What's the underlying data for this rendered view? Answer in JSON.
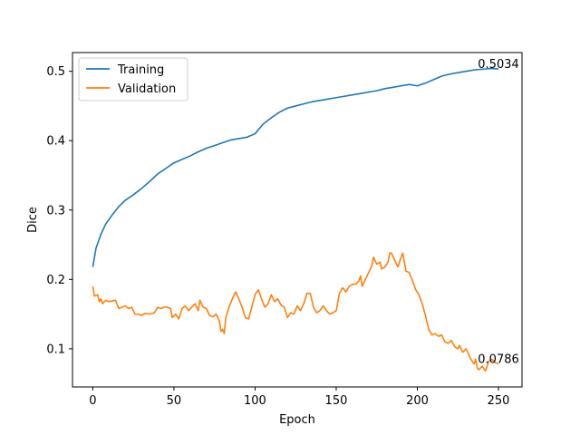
{
  "chart_data": {
    "type": "line",
    "title": "",
    "xlabel": "Epoch",
    "ylabel": "Dice",
    "xlim": [
      -12.5,
      264.5
    ],
    "ylim": [
      0.045,
      0.527
    ],
    "xticks": [
      0,
      50,
      100,
      150,
      200,
      250
    ],
    "yticks": [
      0.1,
      0.2,
      0.3,
      0.4,
      0.5
    ],
    "xtick_labels": [
      "0",
      "50",
      "100",
      "150",
      "200",
      "250"
    ],
    "ytick_labels": [
      "0.1",
      "0.2",
      "0.3",
      "0.4",
      "0.5"
    ],
    "grid": false,
    "legend": {
      "position": "upper-left",
      "entries": [
        "Training",
        "Validation"
      ]
    },
    "series": [
      {
        "name": "Training",
        "color": "#1f77b4",
        "points": [
          [
            0,
            0.218
          ],
          [
            2,
            0.245
          ],
          [
            5,
            0.265
          ],
          [
            8,
            0.28
          ],
          [
            12,
            0.293
          ],
          [
            16,
            0.305
          ],
          [
            20,
            0.314
          ],
          [
            25,
            0.322
          ],
          [
            30,
            0.331
          ],
          [
            35,
            0.341
          ],
          [
            40,
            0.352
          ],
          [
            45,
            0.36
          ],
          [
            50,
            0.368
          ],
          [
            55,
            0.373
          ],
          [
            60,
            0.378
          ],
          [
            65,
            0.384
          ],
          [
            70,
            0.389
          ],
          [
            75,
            0.393
          ],
          [
            80,
            0.397
          ],
          [
            85,
            0.401
          ],
          [
            90,
            0.403
          ],
          [
            95,
            0.405
          ],
          [
            100,
            0.41
          ],
          [
            105,
            0.424
          ],
          [
            110,
            0.433
          ],
          [
            115,
            0.441
          ],
          [
            120,
            0.447
          ],
          [
            125,
            0.45
          ],
          [
            130,
            0.453
          ],
          [
            135,
            0.456
          ],
          [
            140,
            0.458
          ],
          [
            145,
            0.46
          ],
          [
            150,
            0.462
          ],
          [
            155,
            0.464
          ],
          [
            160,
            0.466
          ],
          [
            165,
            0.468
          ],
          [
            170,
            0.47
          ],
          [
            175,
            0.472
          ],
          [
            180,
            0.475
          ],
          [
            185,
            0.477
          ],
          [
            190,
            0.479
          ],
          [
            195,
            0.481
          ],
          [
            200,
            0.479
          ],
          [
            205,
            0.483
          ],
          [
            210,
            0.488
          ],
          [
            215,
            0.493
          ],
          [
            220,
            0.496
          ],
          [
            225,
            0.498
          ],
          [
            230,
            0.5
          ],
          [
            235,
            0.502
          ],
          [
            240,
            0.503
          ],
          [
            245,
            0.504
          ],
          [
            250,
            0.5034
          ]
        ]
      },
      {
        "name": "Validation",
        "color": "#ff7f0e",
        "points": [
          [
            0,
            0.19
          ],
          [
            1,
            0.176
          ],
          [
            3,
            0.178
          ],
          [
            4,
            0.168
          ],
          [
            5,
            0.172
          ],
          [
            6,
            0.165
          ],
          [
            8,
            0.17
          ],
          [
            10,
            0.168
          ],
          [
            12,
            0.169
          ],
          [
            14,
            0.17
          ],
          [
            16,
            0.158
          ],
          [
            18,
            0.16
          ],
          [
            20,
            0.162
          ],
          [
            22,
            0.158
          ],
          [
            24,
            0.16
          ],
          [
            26,
            0.15
          ],
          [
            28,
            0.15
          ],
          [
            30,
            0.148
          ],
          [
            32,
            0.151
          ],
          [
            35,
            0.15
          ],
          [
            38,
            0.152
          ],
          [
            40,
            0.16
          ],
          [
            42,
            0.158
          ],
          [
            44,
            0.16
          ],
          [
            46,
            0.16
          ],
          [
            48,
            0.158
          ],
          [
            49,
            0.145
          ],
          [
            51,
            0.15
          ],
          [
            53,
            0.143
          ],
          [
            55,
            0.158
          ],
          [
            57,
            0.162
          ],
          [
            59,
            0.155
          ],
          [
            61,
            0.16
          ],
          [
            63,
            0.165
          ],
          [
            65,
            0.155
          ],
          [
            66,
            0.17
          ],
          [
            68,
            0.16
          ],
          [
            70,
            0.158
          ],
          [
            72,
            0.148
          ],
          [
            74,
            0.146
          ],
          [
            76,
            0.15
          ],
          [
            78,
            0.14
          ],
          [
            79,
            0.125
          ],
          [
            80,
            0.128
          ],
          [
            81,
            0.122
          ],
          [
            82,
            0.145
          ],
          [
            84,
            0.16
          ],
          [
            86,
            0.172
          ],
          [
            88,
            0.182
          ],
          [
            90,
            0.172
          ],
          [
            92,
            0.16
          ],
          [
            94,
            0.145
          ],
          [
            96,
            0.143
          ],
          [
            98,
            0.16
          ],
          [
            100,
            0.178
          ],
          [
            102,
            0.185
          ],
          [
            104,
            0.172
          ],
          [
            106,
            0.16
          ],
          [
            108,
            0.165
          ],
          [
            110,
            0.178
          ],
          [
            112,
            0.168
          ],
          [
            114,
            0.172
          ],
          [
            116,
            0.163
          ],
          [
            118,
            0.16
          ],
          [
            120,
            0.145
          ],
          [
            122,
            0.152
          ],
          [
            124,
            0.15
          ],
          [
            126,
            0.162
          ],
          [
            128,
            0.155
          ],
          [
            130,
            0.165
          ],
          [
            132,
            0.18
          ],
          [
            134,
            0.18
          ],
          [
            136,
            0.16
          ],
          [
            138,
            0.152
          ],
          [
            140,
            0.155
          ],
          [
            142,
            0.162
          ],
          [
            144,
            0.155
          ],
          [
            146,
            0.15
          ],
          [
            148,
            0.152
          ],
          [
            150,
            0.155
          ],
          [
            152,
            0.18
          ],
          [
            154,
            0.188
          ],
          [
            156,
            0.182
          ],
          [
            158,
            0.19
          ],
          [
            160,
            0.193
          ],
          [
            162,
            0.193
          ],
          [
            164,
            0.198
          ],
          [
            165,
            0.205
          ],
          [
            166,
            0.19
          ],
          [
            168,
            0.2
          ],
          [
            170,
            0.21
          ],
          [
            172,
            0.22
          ],
          [
            173,
            0.232
          ],
          [
            175,
            0.222
          ],
          [
            177,
            0.225
          ],
          [
            178,
            0.215
          ],
          [
            180,
            0.218
          ],
          [
            182,
            0.225
          ],
          [
            183,
            0.238
          ],
          [
            184,
            0.238
          ],
          [
            186,
            0.228
          ],
          [
            188,
            0.218
          ],
          [
            190,
            0.232
          ],
          [
            191,
            0.238
          ],
          [
            193,
            0.212
          ],
          [
            195,
            0.21
          ],
          [
            197,
            0.198
          ],
          [
            199,
            0.185
          ],
          [
            201,
            0.178
          ],
          [
            203,
            0.165
          ],
          [
            205,
            0.148
          ],
          [
            207,
            0.128
          ],
          [
            209,
            0.12
          ],
          [
            211,
            0.122
          ],
          [
            213,
            0.118
          ],
          [
            215,
            0.12
          ],
          [
            217,
            0.11
          ],
          [
            219,
            0.108
          ],
          [
            221,
            0.112
          ],
          [
            223,
            0.103
          ],
          [
            225,
            0.1
          ],
          [
            226,
            0.105
          ],
          [
            228,
            0.095
          ],
          [
            230,
            0.1
          ],
          [
            232,
            0.09
          ],
          [
            233,
            0.085
          ],
          [
            235,
            0.078
          ],
          [
            236,
            0.085
          ],
          [
            237,
            0.072
          ],
          [
            238,
            0.07
          ],
          [
            240,
            0.075
          ],
          [
            242,
            0.068
          ],
          [
            244,
            0.082
          ],
          [
            246,
            0.085
          ],
          [
            248,
            0.08
          ],
          [
            250,
            0.0786
          ]
        ]
      }
    ],
    "annotations": [
      {
        "text": "0.5034",
        "x": 250,
        "y": 0.5034,
        "series": "Training"
      },
      {
        "text": "0.0786",
        "x": 250,
        "y": 0.0786,
        "series": "Validation"
      }
    ]
  }
}
